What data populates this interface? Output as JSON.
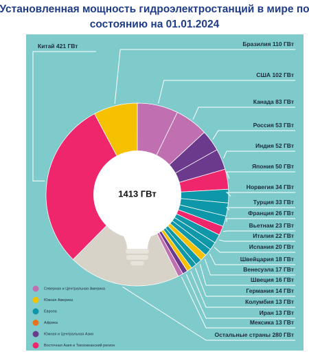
{
  "chart_data": {
    "type": "pie",
    "title": "Установленная мощность гидроэлектростанций в мире по состоянию на 01.01.2024",
    "center_label": "1413 ГВт",
    "categories": [
      "Бразилия",
      "США",
      "Канада",
      "Россия",
      "Индия",
      "Япония",
      "Норвегия",
      "Турция",
      "Франция",
      "Вьетнам",
      "Италия",
      "Испания",
      "Швейцария",
      "Венесуэла",
      "Швеция",
      "Германия",
      "Колумбия",
      "Иран",
      "Мексика",
      "Остальные страны",
      "Китай"
    ],
    "values": [
      110,
      102,
      83,
      53,
      52,
      50,
      34,
      33,
      26,
      23,
      22,
      20,
      18,
      17,
      16,
      14,
      13,
      13,
      13,
      280,
      421
    ],
    "value_labels": [
      "110 ГВт",
      "102 ГВт",
      "83 ГВт",
      "53 ГВт",
      "52 ГВт",
      "50 ГВт",
      "34 ГВт",
      "33 ГВт",
      "26 ГВт",
      "23 ГВт",
      "22 ГВт",
      "20 ГВт",
      "18 ГВт",
      "17 ГВт",
      "16 ГВт",
      "14 ГВт",
      "13 ГВт",
      "13 ГВт",
      "13 ГВт",
      "280 ГВт",
      "421 ГВт"
    ],
    "colors": [
      "#f5c000",
      "#c070b0",
      "#c070b0",
      "#6b3a8c",
      "#6b3a8c",
      "#f0266c",
      "#0e97a8",
      "#0e97a8",
      "#0e97a8",
      "#f0266c",
      "#0e97a8",
      "#0e97a8",
      "#0e97a8",
      "#f5c000",
      "#0e97a8",
      "#0e97a8",
      "#f5c000",
      "#6b3a8c",
      "#c070b0",
      "#d8d3c8",
      "#f0266c"
    ],
    "legend": [
      {
        "name": "Северная и Центральная Америка",
        "color": "#c070b0"
      },
      {
        "name": "Южная Америка",
        "color": "#f5c000"
      },
      {
        "name": "Европа",
        "color": "#0e97a8"
      },
      {
        "name": "Африка",
        "color": "#e8731a"
      },
      {
        "name": "Южная и Центральная Азия",
        "color": "#6b3a8c"
      },
      {
        "name": "Восточная Азия и Тихоокеанский регион",
        "color": "#f0266c"
      }
    ]
  }
}
